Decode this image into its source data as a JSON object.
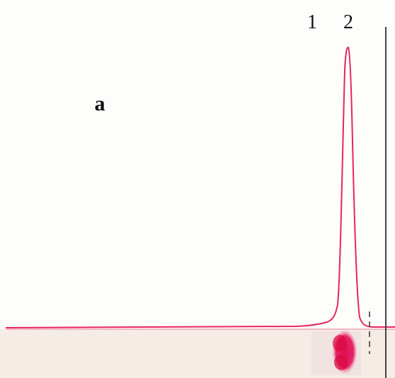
{
  "panel_label": "a",
  "peaks": [
    {
      "label": "1"
    },
    {
      "label": "2"
    }
  ]
}
